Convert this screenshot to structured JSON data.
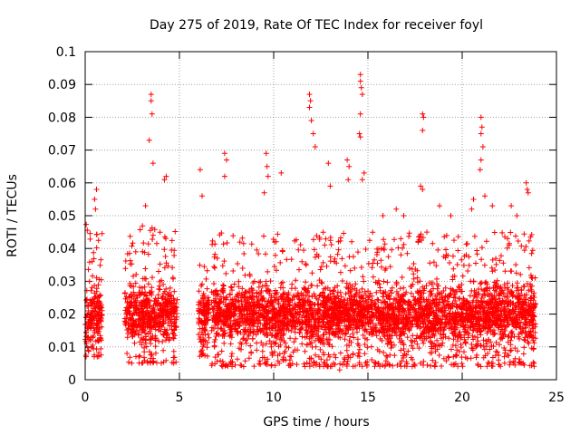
{
  "chart_data": {
    "type": "scatter",
    "title": "Day 275 of 2019, Rate Of TEC Index for receiver foyl",
    "xlabel": "GPS time / hours",
    "ylabel": "ROTI / TECUs",
    "xlim": [
      0,
      25
    ],
    "ylim": [
      0,
      0.1
    ],
    "xticks": [
      0,
      5,
      10,
      15,
      20,
      25
    ],
    "xtick_labels": [
      "0",
      "5",
      "10",
      "15",
      "20",
      "25"
    ],
    "yticks": [
      0,
      0.01,
      0.02,
      0.03,
      0.04,
      0.05,
      0.06,
      0.07,
      0.08,
      0.09,
      0.1
    ],
    "ytick_labels": [
      "0",
      "0.01",
      "0.02",
      "0.03",
      "0.04",
      "0.05",
      "0.06",
      "0.07",
      "0.08",
      "0.09",
      "0.1"
    ],
    "grid": true,
    "marker": "+",
    "color": "#ff0000",
    "data_segments": [
      {
        "x_start": 0.0,
        "x_end": 0.9,
        "y_min": 0.007,
        "y_max": 0.05
      },
      {
        "x_start": 2.1,
        "x_end": 4.9,
        "y_min": 0.005,
        "y_max": 0.047
      },
      {
        "x_start": 6.0,
        "x_end": 6.6,
        "y_min": 0.007,
        "y_max": 0.036
      },
      {
        "x_start": 6.7,
        "x_end": 23.9,
        "y_min": 0.004,
        "y_max": 0.045
      }
    ],
    "notable_points": [
      {
        "x": 0.6,
        "y": 0.058
      },
      {
        "x": 0.5,
        "y": 0.055
      },
      {
        "x": 0.55,
        "y": 0.052
      },
      {
        "x": 3.2,
        "y": 0.053
      },
      {
        "x": 3.5,
        "y": 0.087
      },
      {
        "x": 3.5,
        "y": 0.085
      },
      {
        "x": 3.55,
        "y": 0.081
      },
      {
        "x": 3.4,
        "y": 0.073
      },
      {
        "x": 3.6,
        "y": 0.066
      },
      {
        "x": 4.3,
        "y": 0.062
      },
      {
        "x": 4.2,
        "y": 0.061
      },
      {
        "x": 6.1,
        "y": 0.064
      },
      {
        "x": 6.2,
        "y": 0.056
      },
      {
        "x": 7.4,
        "y": 0.069
      },
      {
        "x": 7.5,
        "y": 0.067
      },
      {
        "x": 7.4,
        "y": 0.062
      },
      {
        "x": 9.6,
        "y": 0.069
      },
      {
        "x": 9.65,
        "y": 0.065
      },
      {
        "x": 9.7,
        "y": 0.062
      },
      {
        "x": 9.5,
        "y": 0.057
      },
      {
        "x": 10.4,
        "y": 0.063
      },
      {
        "x": 11.9,
        "y": 0.087
      },
      {
        "x": 11.95,
        "y": 0.085
      },
      {
        "x": 11.9,
        "y": 0.083
      },
      {
        "x": 12.0,
        "y": 0.079
      },
      {
        "x": 12.1,
        "y": 0.075
      },
      {
        "x": 12.2,
        "y": 0.071
      },
      {
        "x": 12.9,
        "y": 0.066
      },
      {
        "x": 13.0,
        "y": 0.059
      },
      {
        "x": 13.9,
        "y": 0.067
      },
      {
        "x": 14.0,
        "y": 0.065
      },
      {
        "x": 13.95,
        "y": 0.061
      },
      {
        "x": 14.6,
        "y": 0.093
      },
      {
        "x": 14.6,
        "y": 0.091
      },
      {
        "x": 14.65,
        "y": 0.089
      },
      {
        "x": 14.7,
        "y": 0.087
      },
      {
        "x": 14.6,
        "y": 0.081
      },
      {
        "x": 14.55,
        "y": 0.075
      },
      {
        "x": 14.6,
        "y": 0.074
      },
      {
        "x": 14.8,
        "y": 0.063
      },
      {
        "x": 14.7,
        "y": 0.061
      },
      {
        "x": 17.9,
        "y": 0.081
      },
      {
        "x": 17.95,
        "y": 0.08
      },
      {
        "x": 17.9,
        "y": 0.076
      },
      {
        "x": 17.8,
        "y": 0.059
      },
      {
        "x": 17.9,
        "y": 0.058
      },
      {
        "x": 18.8,
        "y": 0.053
      },
      {
        "x": 20.6,
        "y": 0.055
      },
      {
        "x": 20.5,
        "y": 0.052
      },
      {
        "x": 21.0,
        "y": 0.08
      },
      {
        "x": 21.05,
        "y": 0.077
      },
      {
        "x": 21.0,
        "y": 0.075
      },
      {
        "x": 21.1,
        "y": 0.071
      },
      {
        "x": 21.0,
        "y": 0.067
      },
      {
        "x": 20.95,
        "y": 0.064
      },
      {
        "x": 21.2,
        "y": 0.056
      },
      {
        "x": 21.6,
        "y": 0.053
      },
      {
        "x": 23.4,
        "y": 0.06
      },
      {
        "x": 23.45,
        "y": 0.058
      },
      {
        "x": 23.5,
        "y": 0.057
      },
      {
        "x": 22.6,
        "y": 0.053
      },
      {
        "x": 22.9,
        "y": 0.05
      },
      {
        "x": 19.4,
        "y": 0.05
      },
      {
        "x": 16.5,
        "y": 0.052
      },
      {
        "x": 16.9,
        "y": 0.05
      },
      {
        "x": 15.8,
        "y": 0.05
      },
      {
        "x": 13.5,
        "y": 0.003
      },
      {
        "x": 10.3,
        "y": 0.005
      }
    ]
  }
}
